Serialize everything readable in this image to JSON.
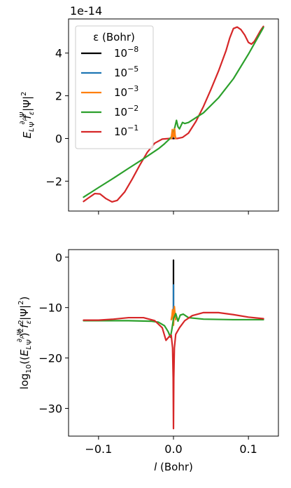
{
  "chart_data": [
    {
      "type": "line",
      "offset_label": "1e-14",
      "ylabel": "E_L (∂ρΨ/Ψ) f_ε |Ψ|²",
      "ylim": [
        -3.4,
        5.6
      ],
      "yticks": [
        {
          "value": 4,
          "label": "4"
        },
        {
          "value": 2,
          "label": "2"
        },
        {
          "value": 0,
          "label": "0"
        },
        {
          "value": -2,
          "label": "−2"
        }
      ],
      "xlim": [
        -0.14,
        0.14
      ],
      "xticks": [
        -0.1,
        0.0,
        0.1
      ],
      "show_xtick_labels": false,
      "legend": {
        "title": "ε (Bohr)",
        "location": "upper left",
        "entries": [
          {
            "base": "10",
            "exp": "−8",
            "color": "#000000"
          },
          {
            "base": "10",
            "exp": "−5",
            "color": "#1f77b4"
          },
          {
            "base": "10",
            "exp": "−3",
            "color": "#ff7f0e"
          },
          {
            "base": "10",
            "exp": "−2",
            "color": "#2ca02c"
          },
          {
            "base": "10",
            "exp": "−1",
            "color": "#d62728"
          }
        ]
      },
      "series": [
        {
          "name": "10^-1",
          "color": "#d62728",
          "points": [
            [
              -0.12,
              -2.95
            ],
            [
              -0.112,
              -2.75
            ],
            [
              -0.105,
              -2.58
            ],
            [
              -0.098,
              -2.6
            ],
            [
              -0.09,
              -2.82
            ],
            [
              -0.082,
              -2.97
            ],
            [
              -0.075,
              -2.9
            ],
            [
              -0.065,
              -2.5
            ],
            [
              -0.055,
              -1.9
            ],
            [
              -0.045,
              -1.25
            ],
            [
              -0.035,
              -0.65
            ],
            [
              -0.025,
              -0.22
            ],
            [
              -0.015,
              -0.03
            ],
            [
              -0.005,
              0.0
            ],
            [
              0.0,
              0.0
            ],
            [
              0.005,
              0.0
            ],
            [
              0.012,
              0.05
            ],
            [
              0.02,
              0.25
            ],
            [
              0.03,
              0.8
            ],
            [
              0.04,
              1.5
            ],
            [
              0.05,
              2.3
            ],
            [
              0.06,
              3.15
            ],
            [
              0.07,
              4.1
            ],
            [
              0.075,
              4.7
            ],
            [
              0.08,
              5.15
            ],
            [
              0.085,
              5.22
            ],
            [
              0.09,
              5.1
            ],
            [
              0.095,
              4.85
            ],
            [
              0.1,
              4.5
            ],
            [
              0.104,
              4.42
            ],
            [
              0.108,
              4.55
            ],
            [
              0.112,
              4.8
            ],
            [
              0.116,
              5.05
            ],
            [
              0.12,
              5.25
            ]
          ]
        },
        {
          "name": "10^-2",
          "color": "#2ca02c",
          "points": [
            [
              -0.12,
              -2.75
            ],
            [
              -0.1,
              -2.3
            ],
            [
              -0.08,
              -1.86
            ],
            [
              -0.06,
              -1.4
            ],
            [
              -0.04,
              -0.95
            ],
            [
              -0.02,
              -0.48
            ],
            [
              -0.012,
              -0.25
            ],
            [
              -0.006,
              -0.05
            ],
            [
              -0.002,
              0.1
            ],
            [
              0.0,
              0.3
            ],
            [
              0.002,
              0.55
            ],
            [
              0.004,
              0.85
            ],
            [
              0.006,
              0.55
            ],
            [
              0.008,
              0.45
            ],
            [
              0.01,
              0.6
            ],
            [
              0.012,
              0.75
            ],
            [
              0.015,
              0.7
            ],
            [
              0.02,
              0.75
            ],
            [
              0.04,
              1.2
            ],
            [
              0.06,
              1.9
            ],
            [
              0.08,
              2.8
            ],
            [
              0.1,
              3.95
            ],
            [
              0.12,
              5.2
            ]
          ]
        },
        {
          "name": "10^-3",
          "color": "#ff7f0e",
          "points": [
            [
              -0.003,
              0.0
            ],
            [
              -0.0025,
              0.15
            ],
            [
              -0.0015,
              0.42
            ],
            [
              -0.0008,
              0.1
            ],
            [
              0.0,
              0.0
            ],
            [
              0.0008,
              0.2
            ],
            [
              0.0015,
              0.45
            ],
            [
              0.0022,
              0.15
            ],
            [
              0.003,
              0.0
            ]
          ]
        },
        {
          "name": "10^-5",
          "color": "#1f77b4",
          "points": [
            [
              -0.0003,
              0.0
            ],
            [
              0.0,
              0.02
            ],
            [
              0.0003,
              0.0
            ]
          ]
        },
        {
          "name": "10^-8",
          "color": "#000000",
          "points": [
            [
              -0.0002,
              0.0
            ],
            [
              0.0002,
              0.0
            ]
          ]
        }
      ]
    },
    {
      "type": "line",
      "ylabel": "log10((E_L (∂ρΨ/Ψ))² f_ε² |Ψ|²)",
      "xlabel": "l (Bohr)",
      "ylim": [
        -35.5,
        1.5
      ],
      "yticks": [
        {
          "value": 0,
          "label": "0"
        },
        {
          "value": -10,
          "label": "−10"
        },
        {
          "value": -20,
          "label": "−20"
        },
        {
          "value": -30,
          "label": "−30"
        }
      ],
      "xlim": [
        -0.14,
        0.14
      ],
      "xticks": [
        -0.1,
        0.0,
        0.1
      ],
      "xtick_labels": [
        "−0.1",
        "0.0",
        "0.1"
      ],
      "series": [
        {
          "name": "10^-8",
          "color": "#000000",
          "points": [
            [
              0.0,
              -12.4
            ],
            [
              0.0,
              -0.6
            ]
          ]
        },
        {
          "name": "10^-5",
          "color": "#1f77b4",
          "points": [
            [
              0.0,
              -12.4
            ],
            [
              0.0,
              -5.5
            ]
          ]
        },
        {
          "name": "10^-3",
          "color": "#ff7f0e",
          "points": [
            [
              -0.003,
              -12.4
            ],
            [
              -0.002,
              -11.6
            ],
            [
              -0.0012,
              -10.4
            ],
            [
              -0.0006,
              -12.0
            ],
            [
              0.0,
              -13.5
            ],
            [
              0.0006,
              -11.8
            ],
            [
              0.0012,
              -9.8
            ],
            [
              0.002,
              -11.2
            ],
            [
              0.003,
              -12.4
            ]
          ]
        },
        {
          "name": "10^-2",
          "color": "#2ca02c",
          "points": [
            [
              -0.12,
              -12.6
            ],
            [
              -0.06,
              -12.6
            ],
            [
              -0.03,
              -12.7
            ],
            [
              -0.02,
              -12.9
            ],
            [
              -0.012,
              -13.6
            ],
            [
              -0.007,
              -14.8
            ],
            [
              -0.004,
              -15.9
            ],
            [
              -0.002,
              -14.2
            ],
            [
              0.0,
              -12.2
            ],
            [
              0.003,
              -11.2
            ],
            [
              0.006,
              -12.7
            ],
            [
              0.009,
              -11.5
            ],
            [
              0.013,
              -11.3
            ],
            [
              0.02,
              -12.0
            ],
            [
              0.04,
              -12.3
            ],
            [
              0.08,
              -12.4
            ],
            [
              0.12,
              -12.4
            ]
          ]
        },
        {
          "name": "10^-1",
          "color": "#d62728",
          "points": [
            [
              -0.12,
              -12.5
            ],
            [
              -0.1,
              -12.5
            ],
            [
              -0.08,
              -12.3
            ],
            [
              -0.06,
              -12.0
            ],
            [
              -0.04,
              -12.0
            ],
            [
              -0.025,
              -12.6
            ],
            [
              -0.015,
              -14.0
            ],
            [
              -0.01,
              -16.5
            ],
            [
              -0.006,
              -15.8
            ],
            [
              -0.003,
              -15.5
            ],
            [
              -0.0012,
              -18.0
            ],
            [
              -0.0004,
              -24.0
            ],
            [
              0.0,
              -34.0
            ],
            [
              0.0004,
              -24.0
            ],
            [
              0.0012,
              -18.0
            ],
            [
              0.003,
              -15.3
            ],
            [
              0.008,
              -14.0
            ],
            [
              0.015,
              -12.6
            ],
            [
              0.025,
              -11.6
            ],
            [
              0.04,
              -11.0
            ],
            [
              0.06,
              -11.0
            ],
            [
              0.08,
              -11.4
            ],
            [
              0.1,
              -11.9
            ],
            [
              0.12,
              -12.2
            ]
          ]
        }
      ]
    }
  ]
}
